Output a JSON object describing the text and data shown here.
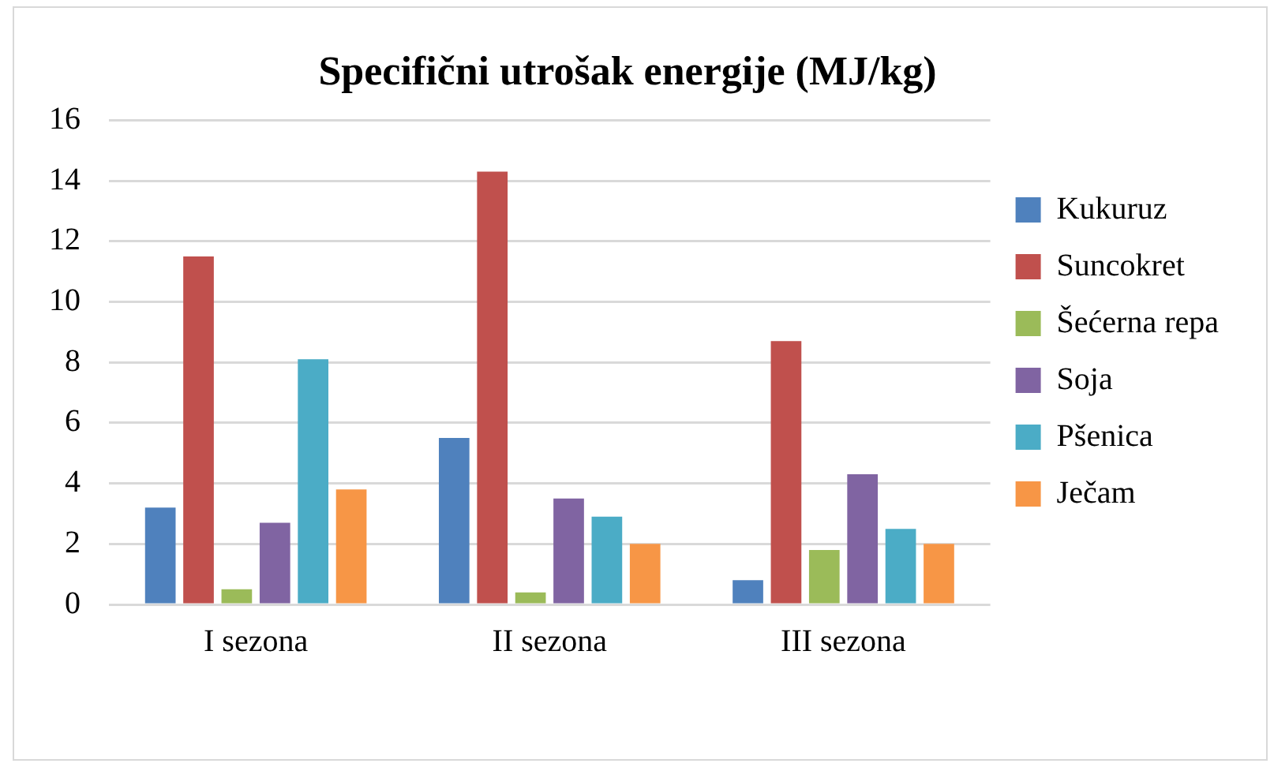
{
  "chart_data": {
    "type": "bar",
    "title": "Specifični utrošak energije (MJ/kg)",
    "categories": [
      "I sezona",
      "II sezona",
      "III sezona"
    ],
    "series": [
      {
        "name": "Kukuruz",
        "color": "#4f81bd",
        "values": [
          3.2,
          5.5,
          0.8
        ]
      },
      {
        "name": "Suncokret",
        "color": "#c0504d",
        "values": [
          11.5,
          14.3,
          8.7
        ]
      },
      {
        "name": "Šećerna repa",
        "color": "#9bbb59",
        "values": [
          0.5,
          0.4,
          1.8
        ]
      },
      {
        "name": "Soja",
        "color": "#8064a2",
        "values": [
          2.7,
          3.5,
          4.3
        ]
      },
      {
        "name": "Pšenica",
        "color": "#4bacc6",
        "values": [
          8.1,
          2.9,
          2.5
        ]
      },
      {
        "name": "Ječam",
        "color": "#f79646",
        "values": [
          3.8,
          2.0,
          2.0
        ]
      }
    ],
    "ylim": [
      0,
      16
    ],
    "yticks": [
      0,
      2,
      4,
      6,
      8,
      10,
      12,
      14,
      16
    ],
    "grid": "y",
    "legend": "right"
  }
}
